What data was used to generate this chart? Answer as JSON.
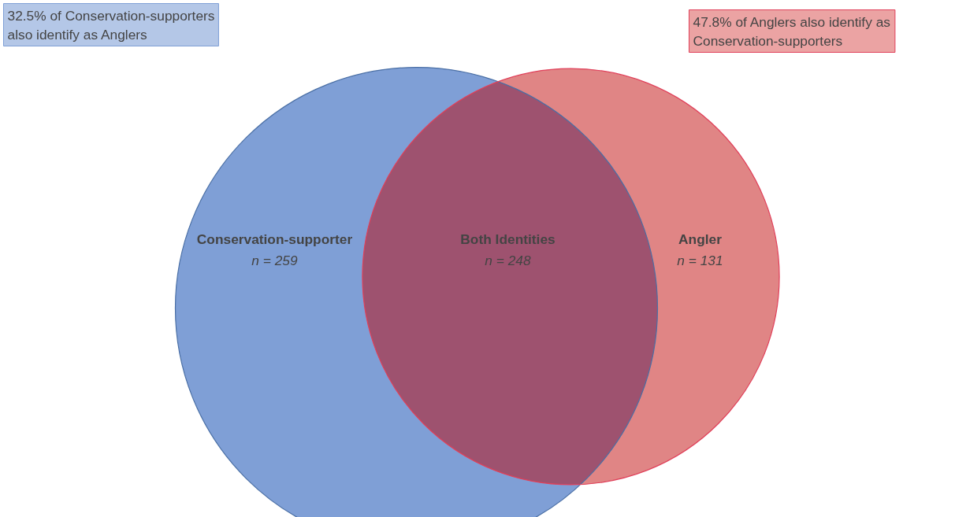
{
  "chart_data": {
    "type": "other",
    "categories": [
      "Conservation-supporter",
      "Both Identities",
      "Angler"
    ],
    "values": [
      259,
      248,
      131
    ],
    "value_labels": [
      "n = 259",
      "n = 248",
      "n = 131"
    ],
    "colors": [
      "#7f9fd6",
      "#9e526f",
      "#e08585"
    ],
    "annotations": [
      "32.5% of Conservation-supporters also identify as Anglers",
      "47.8% of Anglers also identify as Conservation-supporters"
    ]
  }
}
